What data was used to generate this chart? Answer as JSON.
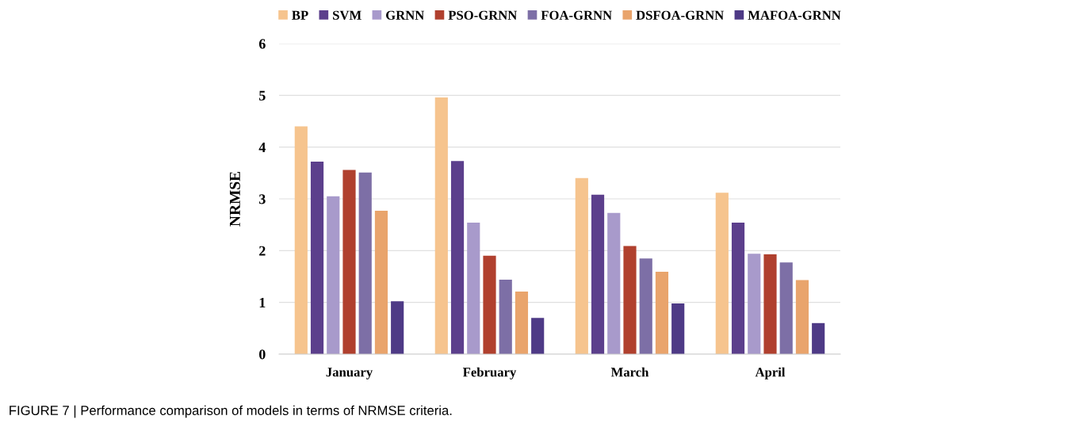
{
  "chart_data": {
    "type": "bar",
    "ylabel": "NRMSE",
    "categories": [
      "January",
      "February",
      "March",
      "April"
    ],
    "series": [
      {
        "name": "BP",
        "color": "#f6c48e",
        "values": [
          4.4,
          4.96,
          3.4,
          3.12
        ]
      },
      {
        "name": "SVM",
        "color": "#5c3f8c",
        "values": [
          3.72,
          3.73,
          3.08,
          2.54
        ]
      },
      {
        "name": "GRNN",
        "color": "#a89acb",
        "values": [
          3.05,
          2.54,
          2.73,
          1.94
        ]
      },
      {
        "name": "PSO-GRNN",
        "color": "#b0402e",
        "values": [
          3.56,
          1.9,
          2.09,
          1.93
        ]
      },
      {
        "name": "FOA-GRNN",
        "color": "#7d6fa6",
        "values": [
          3.51,
          1.44,
          1.85,
          1.77
        ]
      },
      {
        "name": "DSFOA-GRNN",
        "color": "#e9a46c",
        "values": [
          2.77,
          1.21,
          1.59,
          1.43
        ]
      },
      {
        "name": "MAFOA-GRNN",
        "color": "#4e3a86",
        "values": [
          1.02,
          0.7,
          0.98,
          0.6
        ]
      }
    ],
    "ylim": [
      0,
      6
    ],
    "yticks": [
      0,
      1,
      2,
      3,
      4,
      5,
      6
    ],
    "grid": "y",
    "legend": "top",
    "annotations": [
      "FIGURE 7 | Performance comparison of models in terms of NRMSE criteria."
    ]
  }
}
